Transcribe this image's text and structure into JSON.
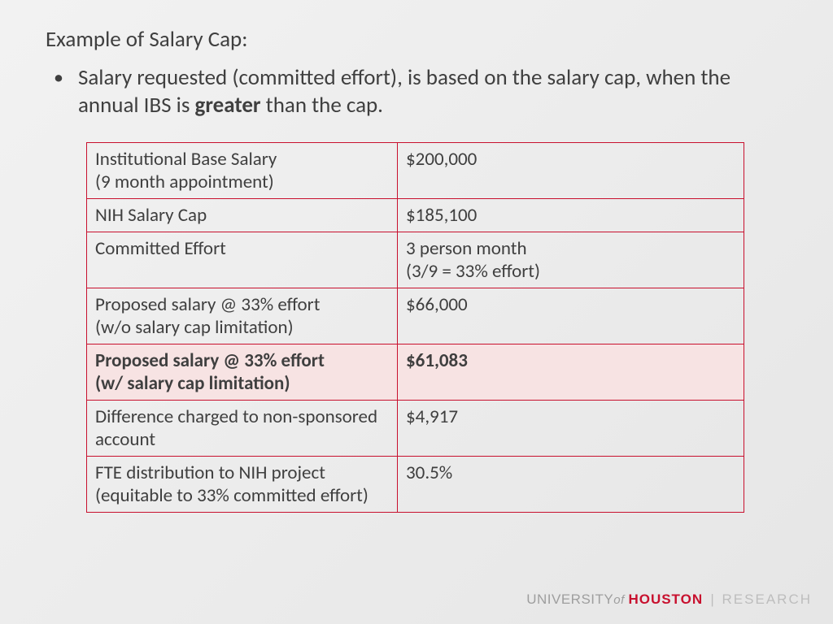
{
  "title": "Example of Salary Cap:",
  "bullet": {
    "pre": "Salary requested (committed effort), is based on the salary cap, when the annual IBS is ",
    "bold": "greater",
    "post": " than the cap."
  },
  "table": {
    "border_color": "#c8102e",
    "highlight_bg": "#f7e3e3",
    "rows": [
      {
        "label": "Institutional Base Salary\n(9 month appointment)",
        "value": "$200,000",
        "highlight": false
      },
      {
        "label": "NIH Salary Cap",
        "value": "$185,100",
        "highlight": false
      },
      {
        "label": "Committed Effort",
        "value": "3 person month\n(3/9 = 33% effort)",
        "highlight": false
      },
      {
        "label": "Proposed salary @ 33% effort\n (w/o salary cap limitation)",
        "value": "$66,000",
        "highlight": false
      },
      {
        "label": "Proposed salary @ 33% effort\n(w/ salary cap limitation)",
        "value": "$61,083",
        "highlight": true
      },
      {
        "label": "Difference charged to non-sponsored account",
        "value": "$4,917",
        "highlight": false
      },
      {
        "label": "FTE distribution to NIH project (equitable to 33% committed effort)",
        "value": "30.5%",
        "highlight": false
      }
    ]
  },
  "brand": {
    "university": "UNIVERSITY",
    "of": "of ",
    "houston": "HOUSTON",
    "separator": "|",
    "research": "RESEARCH"
  }
}
